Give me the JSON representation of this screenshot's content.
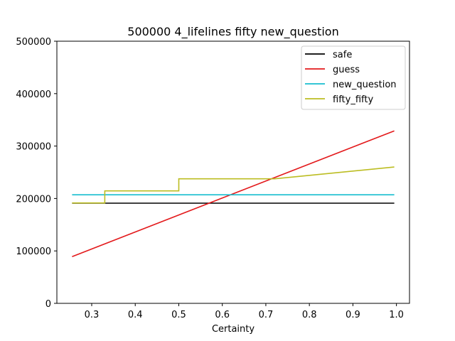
{
  "chart_data": {
    "type": "line",
    "title": "500000 4_lifelines fifty new_question",
    "xlabel": "Certainty",
    "ylabel": "",
    "xlim": [
      0.22,
      1.03
    ],
    "ylim": [
      0,
      500000
    ],
    "xticks": [
      0.3,
      0.4,
      0.5,
      0.6,
      0.7,
      0.8,
      0.9,
      1.0
    ],
    "xtick_labels": [
      "0.3",
      "0.4",
      "0.5",
      "0.6",
      "0.7",
      "0.8",
      "0.9",
      "1.0"
    ],
    "yticks": [
      0,
      100000,
      200000,
      300000,
      400000,
      500000
    ],
    "ytick_labels": [
      "0",
      "100000",
      "200000",
      "300000",
      "400000",
      "500000"
    ],
    "grid": false,
    "legend_position": "top-right",
    "series": [
      {
        "name": "safe",
        "color": "#000000",
        "x": [
          0.255,
          0.995
        ],
        "y": [
          191000,
          191000
        ]
      },
      {
        "name": "guess",
        "color": "#e31a1c",
        "x": [
          0.255,
          0.995
        ],
        "y": [
          89000,
          329000
        ]
      },
      {
        "name": "new_question",
        "color": "#17becf",
        "x": [
          0.255,
          0.995
        ],
        "y": [
          207000,
          207000
        ]
      },
      {
        "name": "fifty_fifty",
        "color": "#bcbd22",
        "x": [
          0.255,
          0.33,
          0.33,
          0.5,
          0.5,
          0.72,
          0.995
        ],
        "y": [
          191500,
          191500,
          214500,
          214500,
          237500,
          237500,
          260000
        ]
      }
    ]
  }
}
